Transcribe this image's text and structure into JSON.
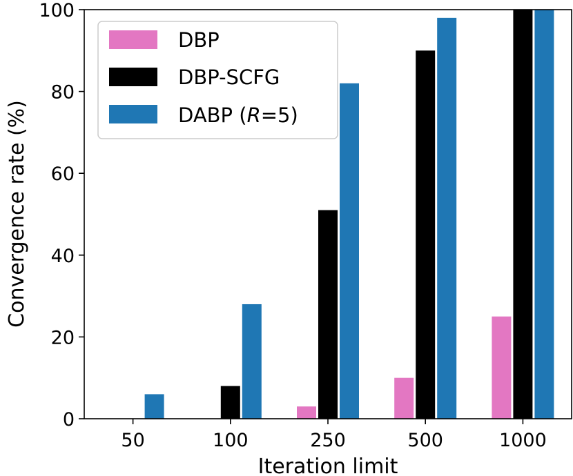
{
  "chart_data": {
    "type": "bar",
    "title": "",
    "xlabel": "Iteration limit",
    "ylabel": "Convergence rate (%)",
    "ylim": [
      0,
      100
    ],
    "yticks": [
      0,
      20,
      40,
      60,
      80,
      100
    ],
    "categories": [
      "50",
      "100",
      "250",
      "500",
      "1000"
    ],
    "series": [
      {
        "name": "DBP",
        "color": "#e377c2",
        "values": [
          0,
          0,
          3,
          10,
          25
        ]
      },
      {
        "name": "DBP-SCFG",
        "color": "#000000",
        "values": [
          0,
          8,
          51,
          90,
          100
        ]
      },
      {
        "name": "DABP (R=5)",
        "color": "#1f77b4",
        "values": [
          6,
          28,
          82,
          98,
          100
        ]
      }
    ],
    "legend": {
      "position": "top-left",
      "entries": [
        {
          "label": "DBP"
        },
        {
          "label": "DBP-SCFG"
        },
        {
          "label_prefix": "DABP (",
          "label_italic": "R",
          "label_suffix": "=5)"
        }
      ]
    }
  }
}
